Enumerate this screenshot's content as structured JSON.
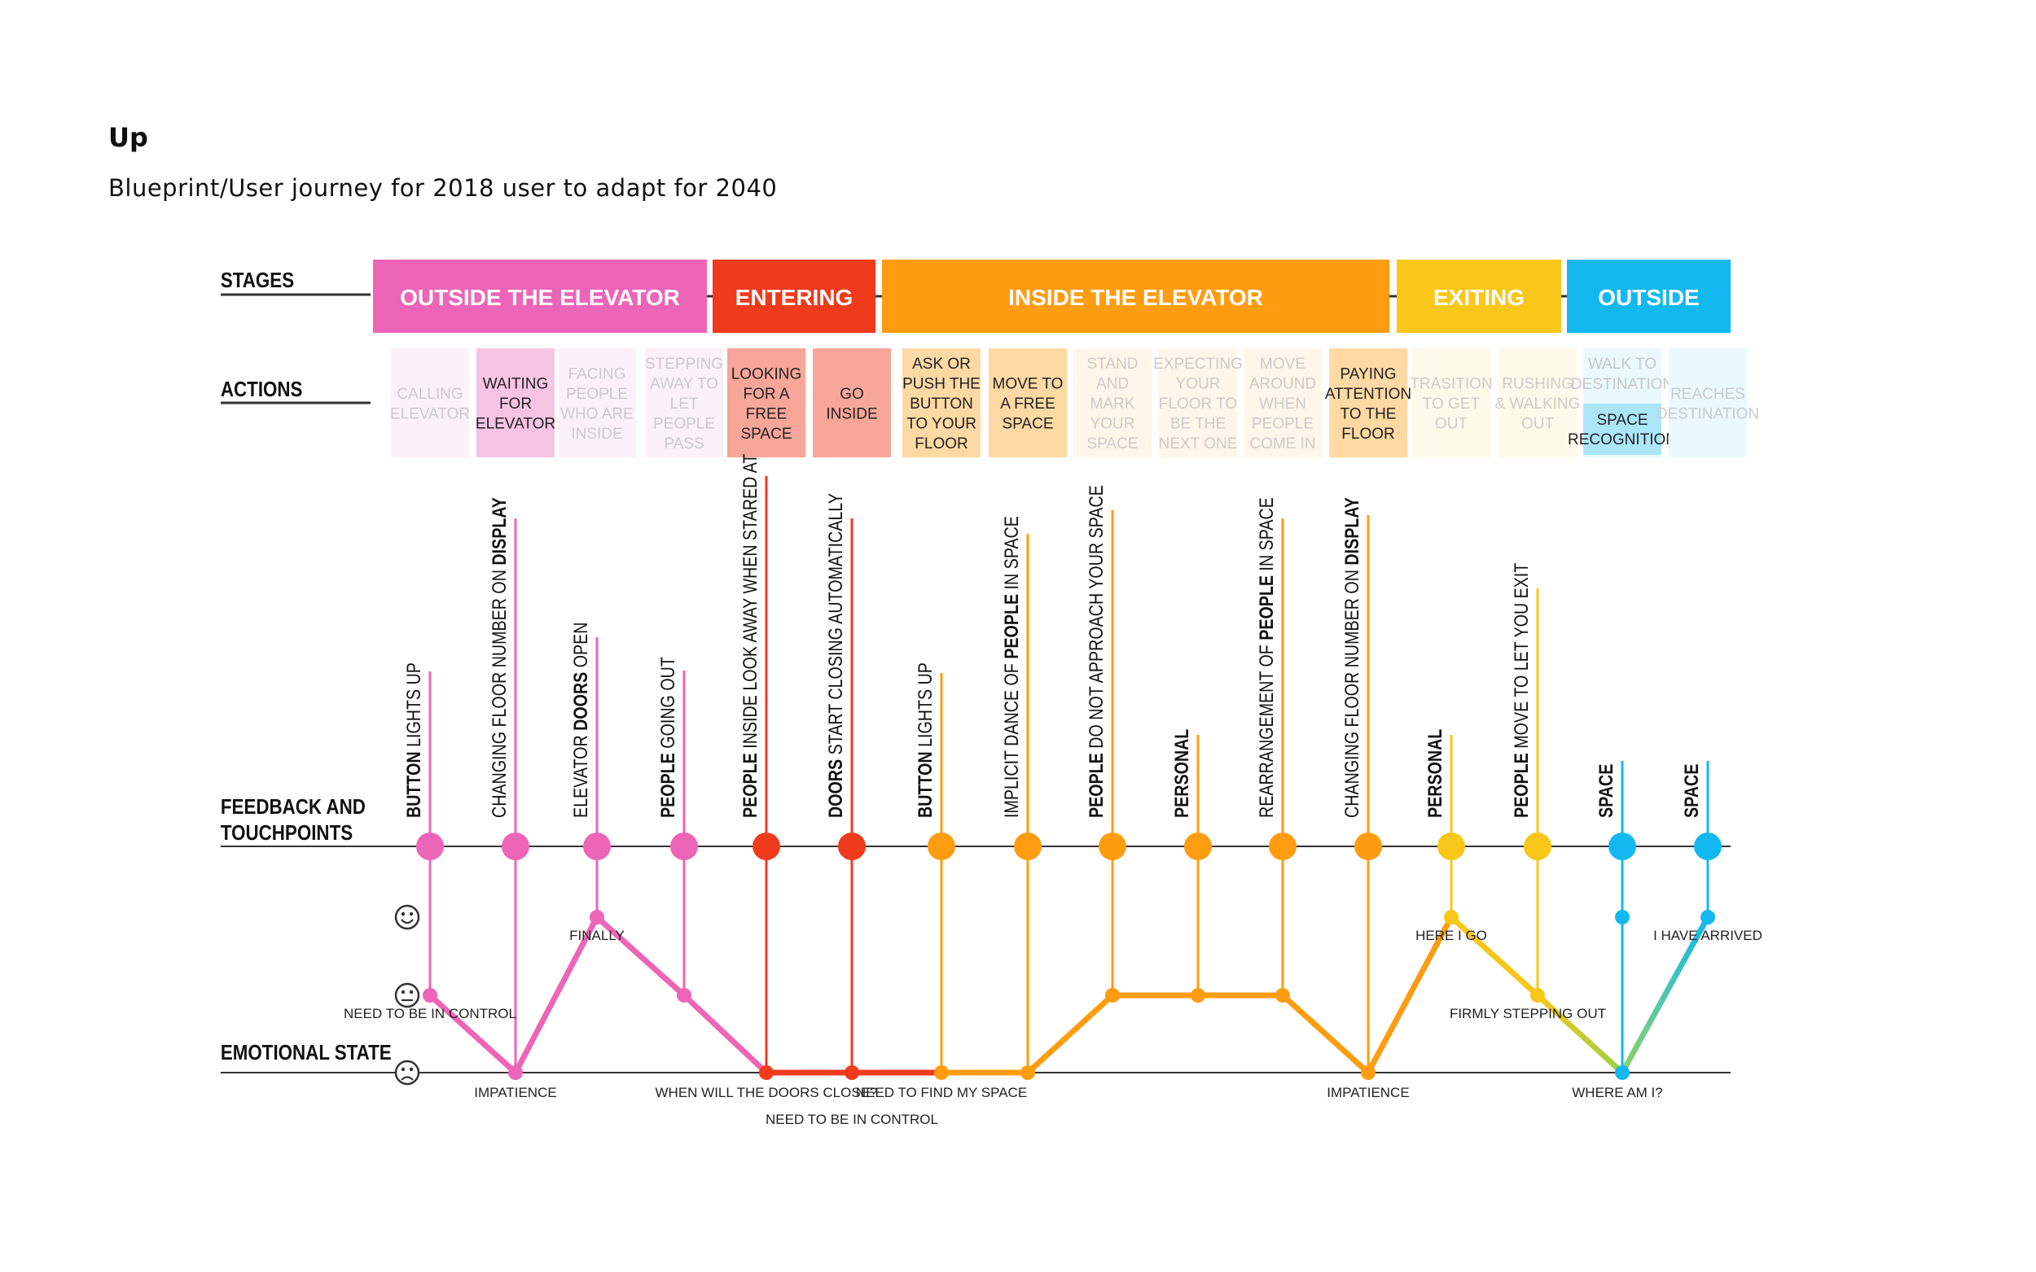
{
  "title": "Up",
  "subtitle": "Blueprint/User journey for 2018 user to adapt for 2040",
  "row_labels": {
    "stages": "STAGES",
    "actions": "ACTIONS",
    "feedback_1": "FEEDBACK AND",
    "feedback_2": "TOUCHPOINTS",
    "emotional": "EMOTIONAL STATE"
  },
  "stages": [
    {
      "label": "OUTSIDE THE ELEVATOR",
      "color": "#ec65b7"
    },
    {
      "label": "ENTERING",
      "color": "#f03a1c"
    },
    {
      "label": "INSIDE THE ELEVATOR",
      "color": "#ff9c10"
    },
    {
      "label": "EXITING",
      "color": "#f9c71a"
    },
    {
      "label": "OUTSIDE",
      "color": "#12b8ef"
    }
  ],
  "actions": [
    {
      "lines": [
        "CALLING",
        "ELEVATOR"
      ],
      "stage": 0,
      "highlight": false
    },
    {
      "lines": [
        "WAITING",
        "FOR",
        "ELEVATOR"
      ],
      "stage": 0,
      "highlight": true
    },
    {
      "lines": [
        "FACING",
        "PEOPLE",
        "WHO ARE",
        "INSIDE"
      ],
      "stage": 0,
      "highlight": false
    },
    {
      "lines": [
        "STEPPING",
        "AWAY TO",
        "LET",
        "PEOPLE",
        "PASS"
      ],
      "stage": 0,
      "highlight": false
    },
    {
      "lines": [
        "LOOKING",
        "FOR A",
        "FREE",
        "SPACE"
      ],
      "stage": 1,
      "highlight": true
    },
    {
      "lines": [
        "GO",
        "INSIDE"
      ],
      "stage": 1,
      "highlight": true
    },
    {
      "lines": [
        "ASK OR",
        "PUSH THE",
        "BUTTON",
        "TO YOUR",
        "FLOOR"
      ],
      "stage": 2,
      "highlight": true
    },
    {
      "lines": [
        "MOVE TO",
        "A FREE",
        "SPACE"
      ],
      "stage": 2,
      "highlight": true
    },
    {
      "lines": [
        "STAND",
        "AND",
        "MARK",
        "YOUR",
        "SPACE"
      ],
      "stage": 2,
      "highlight": false
    },
    {
      "lines": [
        "EXPECTING",
        "YOUR",
        "FLOOR TO",
        "BE THE",
        "NEXT ONE"
      ],
      "stage": 2,
      "highlight": false
    },
    {
      "lines": [
        "MOVE",
        "AROUND",
        "WHEN",
        "PEOPLE",
        "COME IN"
      ],
      "stage": 2,
      "highlight": false
    },
    {
      "lines": [
        "PAYING",
        "ATTENTION",
        "TO THE",
        "FLOOR"
      ],
      "stage": 2,
      "highlight": true
    },
    {
      "lines": [
        "TRASITION",
        "TO GET",
        "OUT"
      ],
      "stage": 3,
      "highlight": false
    },
    {
      "lines": [
        "RUSHING",
        "& WALKING",
        "OUT"
      ],
      "stage": 3,
      "highlight": false
    },
    {
      "lines": [
        "WALK TO",
        "DESTINATION"
      ],
      "stage": 4,
      "highlight": false,
      "extra": [
        "SPACE",
        "RECOGNITION"
      ]
    },
    {
      "lines": [
        "REACHES",
        "DESTINATION"
      ],
      "stage": 4,
      "highlight": false
    }
  ],
  "touchpoints": [
    {
      "parts": [
        {
          "t": "BUTTON",
          "b": true
        },
        {
          "t": " LIGHTS UP",
          "b": false
        }
      ],
      "color": "#ec65b7",
      "emotion": 1
    },
    {
      "parts": [
        {
          "t": "CHANGING FLOOR NUMBER ON ",
          "b": false
        },
        {
          "t": "DISPLAY",
          "b": true
        }
      ],
      "color": "#ec65b7",
      "emotion": 0
    },
    {
      "parts": [
        {
          "t": "ELEVATOR ",
          "b": false
        },
        {
          "t": "DOORS",
          "b": true
        },
        {
          "t": " OPEN",
          "b": false
        }
      ],
      "color": "#ec65b7",
      "emotion": 2
    },
    {
      "parts": [
        {
          "t": "PEOPLE",
          "b": true
        },
        {
          "t": " GOING OUT",
          "b": false
        }
      ],
      "color": "#ec65b7",
      "emotion": 1
    },
    {
      "parts": [
        {
          "t": "PEOPLE",
          "b": true
        },
        {
          "t": " INSIDE LOOK AWAY WHEN STARED AT",
          "b": false
        }
      ],
      "color": "#f03a1c",
      "emotion": 0
    },
    {
      "parts": [
        {
          "t": "DOORS",
          "b": true
        },
        {
          "t": " START CLOSING AUTOMATICALLY",
          "b": false
        }
      ],
      "color": "#f03a1c",
      "emotion": 0
    },
    {
      "parts": [
        {
          "t": "BUTTON",
          "b": true
        },
        {
          "t": " LIGHTS UP",
          "b": false
        }
      ],
      "color": "#ff9c10",
      "emotion": 0
    },
    {
      "parts": [
        {
          "t": "IMPLICIT DANCE OF ",
          "b": false
        },
        {
          "t": "PEOPLE",
          "b": true
        },
        {
          "t": " IN SPACE",
          "b": false
        }
      ],
      "color": "#ff9c10",
      "emotion": 0
    },
    {
      "parts": [
        {
          "t": "PEOPLE",
          "b": true
        },
        {
          "t": " DO NOT APPROACH YOUR SPACE",
          "b": false
        }
      ],
      "color": "#ff9c10",
      "emotion": 1
    },
    {
      "parts": [
        {
          "t": "PERSONAL",
          "b": true
        }
      ],
      "color": "#ff9c10",
      "emotion": 1
    },
    {
      "parts": [
        {
          "t": "REARRANGEMENT OF ",
          "b": false
        },
        {
          "t": "PEOPLE",
          "b": true
        },
        {
          "t": " IN SPACE",
          "b": false
        }
      ],
      "color": "#ff9c10",
      "emotion": 1
    },
    {
      "parts": [
        {
          "t": "CHANGING FLOOR NUMBER ON ",
          "b": false
        },
        {
          "t": "DISPLAY",
          "b": true
        }
      ],
      "color": "#ff9c10",
      "emotion": 0
    },
    {
      "parts": [
        {
          "t": "PERSONAL",
          "b": true
        }
      ],
      "color": "#f9c71a",
      "emotion": 2
    },
    {
      "parts": [
        {
          "t": "PEOPLE",
          "b": true
        },
        {
          "t": " MOVE TO LET YOU EXIT",
          "b": false
        }
      ],
      "color": "#f9c71a",
      "emotion": 1
    },
    {
      "parts": [
        {
          "t": "SPACE",
          "b": true
        }
      ],
      "color": "#12b8ef",
      "emotion": 0,
      "ghost_emotion": 2
    },
    {
      "parts": [
        {
          "t": "SPACE",
          "b": true
        }
      ],
      "color": "#12b8ef",
      "emotion": 2
    }
  ],
  "emotion_faces": [
    "happy-face-icon",
    "neutral-face-icon",
    "sad-face-icon"
  ],
  "emotion_notes": [
    {
      "text": "NEED TO BE IN CONTROL",
      "point": 0
    },
    {
      "text": "IMPATIENCE",
      "point": 1
    },
    {
      "text": "FINALLY",
      "point": 2
    },
    {
      "text": "WHEN WILL THE DOORS CLOSE?",
      "point": 4
    },
    {
      "text": "NEED TO FIND MY SPACE",
      "point": 6
    },
    {
      "text": "NEED TO BE IN CONTROL",
      "point": 5
    },
    {
      "text": "IMPATIENCE",
      "point": 11
    },
    {
      "text": "HERE I GO",
      "point": 12
    },
    {
      "text": "FIRMLY STEPPING OUT",
      "point": 13
    },
    {
      "text": "WHERE AM I?",
      "point": 14
    },
    {
      "text": "I HAVE ARRIVED",
      "point": 15
    }
  ]
}
